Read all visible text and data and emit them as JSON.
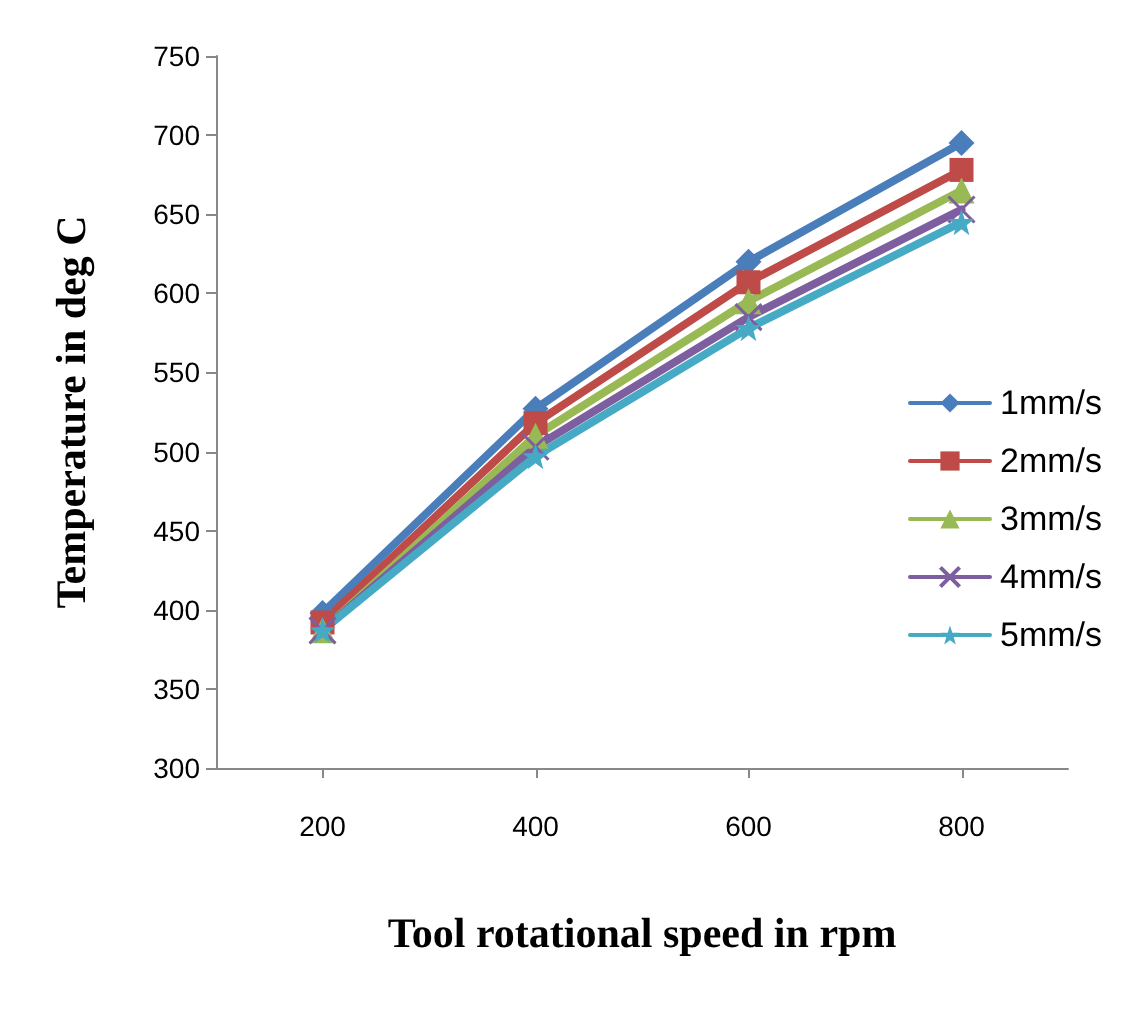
{
  "chart_data": {
    "type": "line",
    "xlabel": "Tool rotational speed in rpm",
    "ylabel": "Temperature in deg C",
    "categories": [
      "200",
      "400",
      "600",
      "800"
    ],
    "ylim": [
      300,
      750
    ],
    "yticks": [
      300,
      350,
      400,
      450,
      500,
      550,
      600,
      650,
      700,
      750
    ],
    "grid": false,
    "legend": "right",
    "line_style": "solid",
    "series": [
      {
        "name": "1mm/s",
        "color": "#4a7ebb",
        "marker": "diamond",
        "values": [
          398,
          527,
          620,
          695
        ]
      },
      {
        "name": "2mm/s",
        "color": "#be4b48",
        "marker": "square",
        "values": [
          392,
          518,
          607,
          678
        ]
      },
      {
        "name": "3mm/s",
        "color": "#98b954",
        "marker": "triangle",
        "values": [
          387,
          510,
          595,
          665
        ]
      },
      {
        "name": "4mm/s",
        "color": "#7d5fa0",
        "marker": "cross",
        "values": [
          387,
          503,
          585,
          653
        ]
      },
      {
        "name": "5mm/s",
        "color": "#46aac5",
        "marker": "star",
        "values": [
          387,
          497,
          578,
          645
        ]
      }
    ]
  }
}
